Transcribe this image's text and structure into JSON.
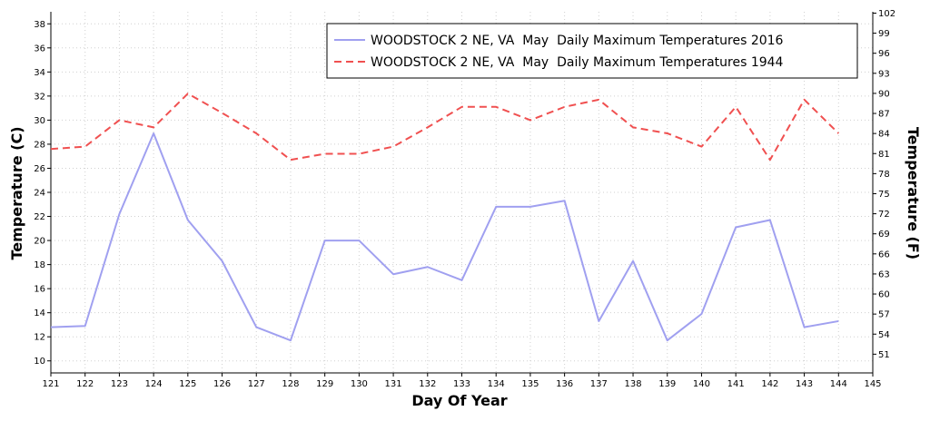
{
  "chart_data": {
    "type": "line",
    "title": "",
    "xlabel": "Day Of Year",
    "ylabel": "Temperature (C)",
    "ylabel_right": "Temperature (F)",
    "x": [
      121,
      122,
      123,
      124,
      125,
      126,
      127,
      128,
      129,
      130,
      131,
      132,
      133,
      134,
      135,
      136,
      137,
      138,
      139,
      140,
      141,
      142,
      143,
      144
    ],
    "xlim": [
      121,
      145
    ],
    "x_ticks": [
      121,
      122,
      123,
      124,
      125,
      126,
      127,
      128,
      129,
      130,
      131,
      132,
      133,
      134,
      135,
      136,
      137,
      138,
      139,
      140,
      141,
      142,
      143,
      144,
      145
    ],
    "ylim": [
      9,
      39
    ],
    "y_ticks": [
      10,
      12,
      14,
      16,
      18,
      20,
      22,
      24,
      26,
      28,
      30,
      32,
      34,
      36,
      38
    ],
    "y2_ticks": [
      51,
      54,
      57,
      60,
      63,
      66,
      69,
      72,
      75,
      78,
      81,
      84,
      87,
      90,
      93,
      96,
      99,
      102
    ],
    "grid": true,
    "legend_position": "top-right",
    "series": [
      {
        "name": "WOODSTOCK 2 NE, VA  May  Daily Maximum Temperatures 2016",
        "color": "#a0a0f0",
        "style": "solid",
        "values": [
          12.8,
          12.9,
          22.2,
          28.9,
          21.7,
          18.3,
          12.8,
          11.7,
          20.0,
          20.0,
          17.2,
          17.8,
          16.7,
          22.8,
          22.8,
          23.3,
          13.3,
          18.3,
          11.7,
          13.9,
          21.1,
          21.7,
          12.8,
          13.3
        ]
      },
      {
        "name": "WOODSTOCK 2 NE, VA  May  Daily Maximum Temperatures 1944",
        "color": "#f05050",
        "style": "dashed",
        "values": [
          27.6,
          27.8,
          30.0,
          29.4,
          32.2,
          30.6,
          28.9,
          26.7,
          27.2,
          27.2,
          27.8,
          29.4,
          31.1,
          31.1,
          30.0,
          31.1,
          31.7,
          29.4,
          28.9,
          27.8,
          31.1,
          26.7,
          31.7,
          28.9
        ]
      }
    ]
  },
  "icons": {
    "legend_swatch_solid": "solid-line-swatch",
    "legend_swatch_dashed": "dashed-line-swatch"
  }
}
